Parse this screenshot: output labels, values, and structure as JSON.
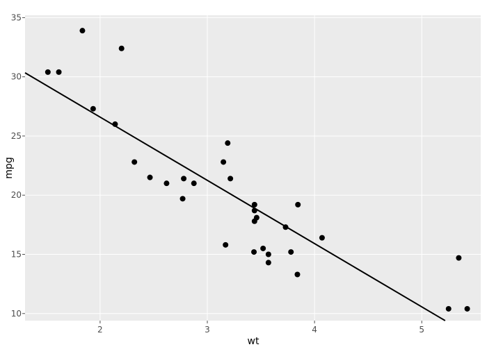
{
  "chart_data": {
    "type": "scatter",
    "title": "",
    "xlabel": "wt",
    "ylabel": "mpg",
    "xlim": [
      1.3,
      5.55
    ],
    "ylim": [
      9.4,
      35.2
    ],
    "x_ticks": [
      2,
      3,
      4,
      5
    ],
    "y_ticks": [
      10,
      15,
      20,
      25,
      30,
      35
    ],
    "x_tick_labels": [
      "2",
      "3",
      "4",
      "5"
    ],
    "y_tick_labels": [
      "10",
      "15",
      "20",
      "25",
      "30",
      "35"
    ],
    "grid": true,
    "legend": "none",
    "colors": {
      "panel_background": "#ebebeb",
      "grid": "#ffffff",
      "points": "#000000",
      "fit_line": "#000000"
    },
    "points": [
      {
        "x": 1.513,
        "y": 30.4
      },
      {
        "x": 1.615,
        "y": 30.4
      },
      {
        "x": 1.835,
        "y": 33.9
      },
      {
        "x": 1.935,
        "y": 27.3
      },
      {
        "x": 2.14,
        "y": 26.0
      },
      {
        "x": 2.2,
        "y": 32.4
      },
      {
        "x": 2.32,
        "y": 22.8
      },
      {
        "x": 2.465,
        "y": 21.5
      },
      {
        "x": 2.62,
        "y": 21.0
      },
      {
        "x": 2.77,
        "y": 19.7
      },
      {
        "x": 2.78,
        "y": 21.4
      },
      {
        "x": 2.875,
        "y": 21.0
      },
      {
        "x": 3.15,
        "y": 22.8
      },
      {
        "x": 3.17,
        "y": 15.8
      },
      {
        "x": 3.19,
        "y": 24.4
      },
      {
        "x": 3.215,
        "y": 21.4
      },
      {
        "x": 3.435,
        "y": 15.2
      },
      {
        "x": 3.44,
        "y": 18.7
      },
      {
        "x": 3.44,
        "y": 19.2
      },
      {
        "x": 3.44,
        "y": 17.8
      },
      {
        "x": 3.46,
        "y": 18.1
      },
      {
        "x": 3.52,
        "y": 15.5
      },
      {
        "x": 3.57,
        "y": 15.0
      },
      {
        "x": 3.57,
        "y": 14.3
      },
      {
        "x": 3.73,
        "y": 17.3
      },
      {
        "x": 3.78,
        "y": 15.2
      },
      {
        "x": 3.84,
        "y": 13.3
      },
      {
        "x": 3.845,
        "y": 19.2
      },
      {
        "x": 4.07,
        "y": 16.4
      },
      {
        "x": 5.25,
        "y": 10.4
      },
      {
        "x": 5.345,
        "y": 14.7
      },
      {
        "x": 5.424,
        "y": 10.4
      }
    ],
    "fit_line": {
      "type": "linear",
      "intercept": 37.285,
      "slope": -5.344
    }
  }
}
